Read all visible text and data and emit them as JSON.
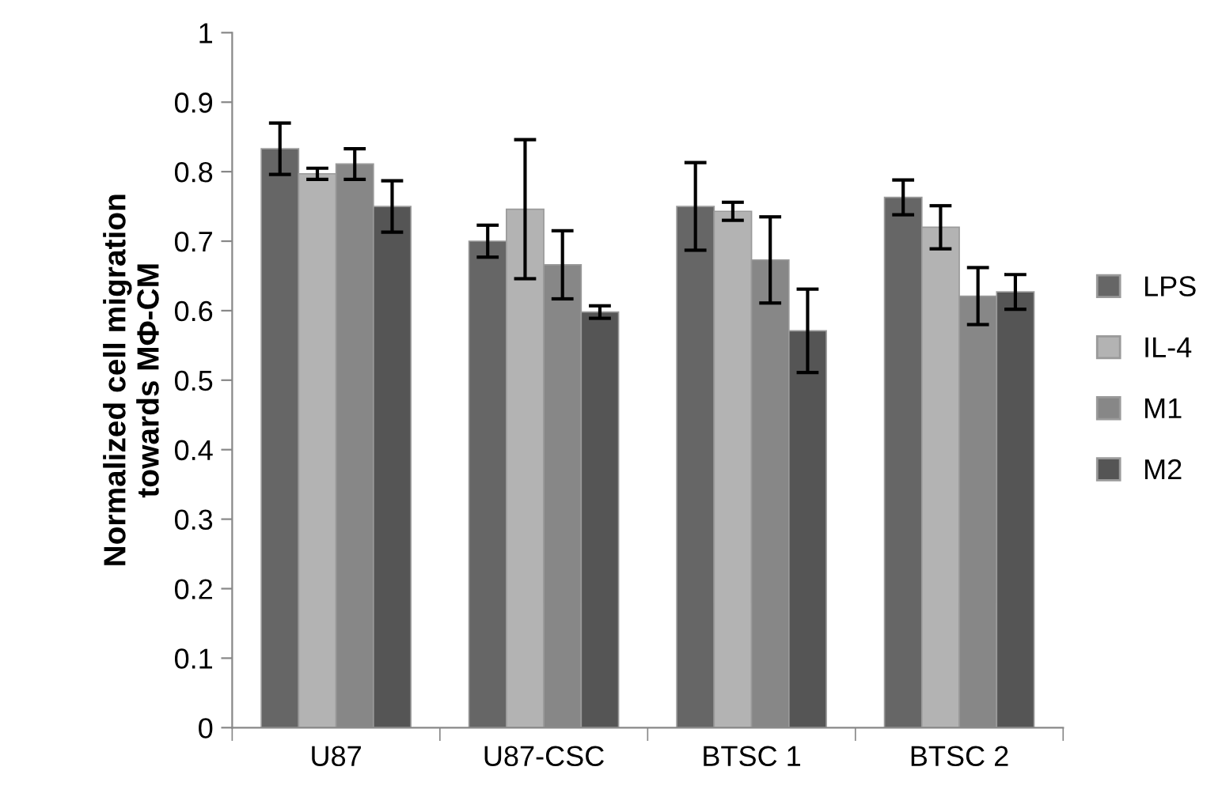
{
  "chart_data": {
    "type": "bar",
    "ylabel": "Normalized cell migration\ntowards MΦ-CM",
    "categories": [
      "U87",
      "U87-CSC",
      "BTSC 1",
      "BTSC 2"
    ],
    "series": [
      {
        "name": "LPS",
        "color": "#666666",
        "values": [
          0.833,
          0.7,
          0.75,
          0.763
        ],
        "errors": [
          0.037,
          0.023,
          0.063,
          0.025
        ]
      },
      {
        "name": "IL-4",
        "color": "#b3b3b3",
        "values": [
          0.797,
          0.746,
          0.743,
          0.72
        ],
        "errors": [
          0.008,
          0.1,
          0.013,
          0.031
        ]
      },
      {
        "name": "M1",
        "color": "#878787",
        "values": [
          0.811,
          0.666,
          0.673,
          0.621
        ],
        "errors": [
          0.022,
          0.049,
          0.062,
          0.041
        ]
      },
      {
        "name": "M2",
        "color": "#555555",
        "values": [
          0.75,
          0.598,
          0.571,
          0.627
        ],
        "errors": [
          0.037,
          0.009,
          0.06,
          0.025
        ]
      }
    ],
    "ylim": [
      0,
      1
    ],
    "yticks": [
      0,
      0.1,
      0.2,
      0.3,
      0.4,
      0.5,
      0.6,
      0.7,
      0.8,
      0.9,
      1
    ],
    "grid": false,
    "legend": "right"
  }
}
